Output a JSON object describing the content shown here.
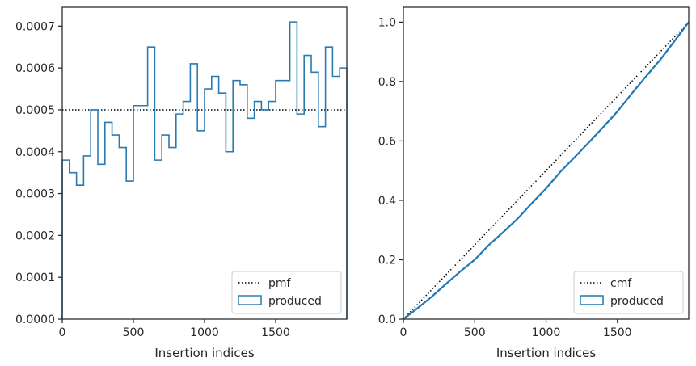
{
  "colors": {
    "histogram": "#2b7bb0",
    "cdf_line": "#1f77b4",
    "reference": "#000000",
    "axes": "#262626"
  },
  "chart_data": [
    {
      "type": "histogram-step",
      "xlabel": "Insertion indices",
      "ylabel": "",
      "xlim": [
        0,
        2000
      ],
      "ylim": [
        0,
        0.000745
      ],
      "xticks": [
        0,
        500,
        1000,
        1500
      ],
      "xtick_labels": [
        "0",
        "500",
        "1000",
        "1500"
      ],
      "yticks": [
        0,
        0.0001,
        0.0002,
        0.0003,
        0.0004,
        0.0005,
        0.0006,
        0.0007
      ],
      "ytick_labels": [
        "0.0000",
        "0.0001",
        "0.0002",
        "0.0003",
        "0.0004",
        "0.0005",
        "0.0006",
        "0.0007"
      ],
      "bin_edges": [
        0,
        50,
        100,
        150,
        200,
        250,
        300,
        350,
        400,
        450,
        500,
        550,
        600,
        650,
        700,
        750,
        800,
        850,
        900,
        950,
        1000,
        1050,
        1100,
        1150,
        1200,
        1250,
        1300,
        1350,
        1400,
        1450,
        1500,
        1550,
        1600,
        1650,
        1700,
        1750,
        1800,
        1850,
        1900,
        1950,
        2000
      ],
      "series": [
        {
          "name": "pmf",
          "style": "dotted",
          "x": [
            0,
            2000
          ],
          "y": [
            0.0005,
            0.0005
          ]
        },
        {
          "name": "produced",
          "style": "step",
          "values": [
            0.00038,
            0.00035,
            0.00032,
            0.00039,
            0.0005,
            0.00037,
            0.00047,
            0.00044,
            0.00041,
            0.00033,
            0.00051,
            0.00051,
            0.00065,
            0.00038,
            0.00044,
            0.00041,
            0.00049,
            0.00052,
            0.00061,
            0.00045,
            0.00055,
            0.00058,
            0.00054,
            0.0004,
            0.00057,
            0.00056,
            0.00048,
            0.00052,
            0.0005,
            0.00052,
            0.00057,
            0.00057,
            0.00071,
            0.00049,
            0.00063,
            0.00059,
            0.00046,
            0.00065,
            0.00058,
            0.0006
          ]
        }
      ],
      "legend": {
        "placement": "lower-right",
        "entries": [
          "pmf",
          "produced"
        ]
      }
    },
    {
      "type": "line",
      "xlabel": "Insertion indices",
      "ylabel": "",
      "xlim": [
        0,
        2000
      ],
      "ylim": [
        0,
        1.05
      ],
      "xticks": [
        0,
        500,
        1000,
        1500
      ],
      "xtick_labels": [
        "0",
        "500",
        "1000",
        "1500"
      ],
      "yticks": [
        0,
        0.2,
        0.4,
        0.6,
        0.8,
        1.0
      ],
      "ytick_labels": [
        "0.0",
        "0.2",
        "0.4",
        "0.6",
        "0.8",
        "1.0"
      ],
      "series": [
        {
          "name": "cmf",
          "style": "dotted",
          "x": [
            0,
            2000
          ],
          "y": [
            0,
            1.0
          ]
        },
        {
          "name": "produced",
          "style": "solid",
          "x": [
            0,
            100,
            200,
            300,
            400,
            500,
            600,
            700,
            800,
            900,
            1000,
            1100,
            1200,
            1300,
            1400,
            1500,
            1600,
            1700,
            1800,
            1900,
            2000
          ],
          "y": [
            0,
            0.037,
            0.076,
            0.119,
            0.161,
            0.2,
            0.25,
            0.293,
            0.338,
            0.39,
            0.44,
            0.496,
            0.545,
            0.595,
            0.646,
            0.699,
            0.759,
            0.817,
            0.873,
            0.936,
            1.0
          ]
        }
      ],
      "legend": {
        "placement": "lower-right",
        "entries": [
          "cmf",
          "produced"
        ]
      }
    }
  ]
}
